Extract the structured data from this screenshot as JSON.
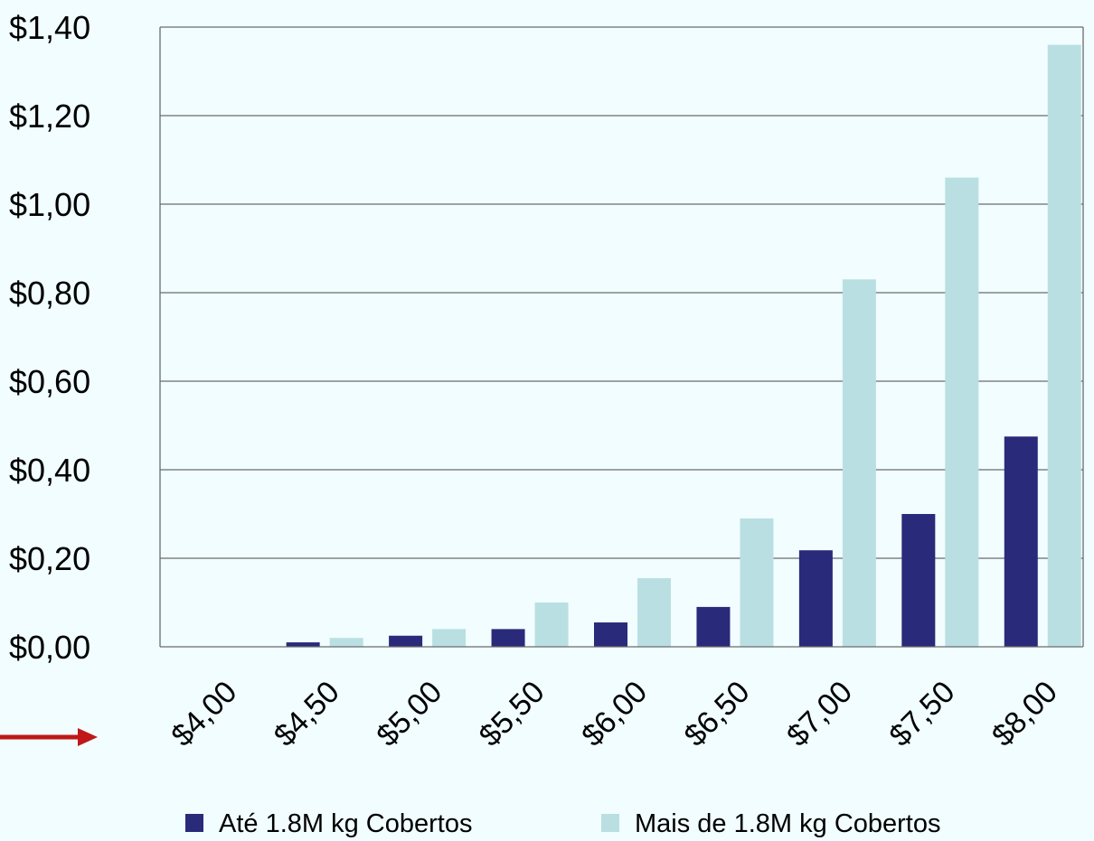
{
  "chart_data": {
    "type": "bar",
    "categories": [
      "$4,00",
      "$4,50",
      "$5,00",
      "$5,50",
      "$6,00",
      "$6,50",
      "$7,00",
      "$7,50",
      "$8,00"
    ],
    "series": [
      {
        "name": "Até 1.8M kg Cobertos",
        "color": "#2a2a7b",
        "values": [
          0.0,
          0.01,
          0.025,
          0.04,
          0.055,
          0.09,
          0.218,
          0.3,
          0.475
        ]
      },
      {
        "name": "Mais de 1.8M kg Cobertos",
        "color": "#badfe3",
        "values": [
          0.0,
          0.02,
          0.04,
          0.1,
          0.155,
          0.29,
          0.83,
          1.06,
          1.36
        ]
      }
    ],
    "y_tick_labels": [
      "$0,00",
      "$0,20",
      "$0,40",
      "$0,60",
      "$0,80",
      "$1,00",
      "$1,20",
      "$1,40"
    ],
    "ylim": [
      0,
      1.4
    ],
    "grid": true,
    "legend": "bottom",
    "annotation": "red-arrow-pointing-to-x-axis"
  }
}
